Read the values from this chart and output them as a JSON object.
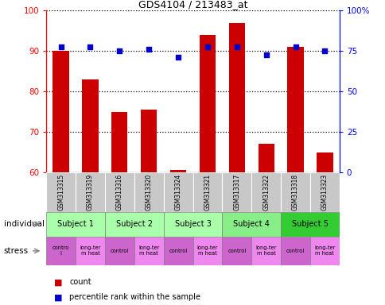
{
  "title": "GDS4104 / 213483_at",
  "samples": [
    "GSM313315",
    "GSM313319",
    "GSM313316",
    "GSM313320",
    "GSM313324",
    "GSM313321",
    "GSM313317",
    "GSM313322",
    "GSM313318",
    "GSM313323"
  ],
  "bar_values": [
    90,
    83,
    75,
    75.5,
    60.5,
    94,
    97,
    67,
    91,
    65
  ],
  "percentile_values": [
    91,
    91,
    90,
    90.5,
    88.5,
    91,
    91,
    89,
    91,
    90
  ],
  "bar_color": "#cc0000",
  "percentile_color": "#0000cc",
  "ylim": [
    60,
    100
  ],
  "yticks_left": [
    60,
    70,
    80,
    90,
    100
  ],
  "yticks_right": [
    0,
    25,
    50,
    75,
    100
  ],
  "right_ylim": [
    0,
    100
  ],
  "subjects": [
    {
      "label": "Subject 1",
      "cols": [
        0,
        1
      ],
      "color": "#aaffaa"
    },
    {
      "label": "Subject 2",
      "cols": [
        2,
        3
      ],
      "color": "#aaffaa"
    },
    {
      "label": "Subject 3",
      "cols": [
        4,
        5
      ],
      "color": "#aaffaa"
    },
    {
      "label": "Subject 4",
      "cols": [
        6,
        7
      ],
      "color": "#88ee88"
    },
    {
      "label": "Subject 5",
      "cols": [
        8,
        9
      ],
      "color": "#33cc33"
    }
  ],
  "stress_labels": [
    "contro\nl",
    "long-ter\nm heat",
    "control",
    "long-ter\nm heat",
    "control",
    "long-ter\nm heat",
    "control",
    "long-ter\nm heat",
    "control",
    "long-ter\nm heat"
  ],
  "control_color": "#cc66cc",
  "heat_color": "#ee88ee",
  "individual_label": "individual",
  "stress_label": "stress",
  "legend_count_color": "#cc0000",
  "legend_pct_color": "#0000cc"
}
